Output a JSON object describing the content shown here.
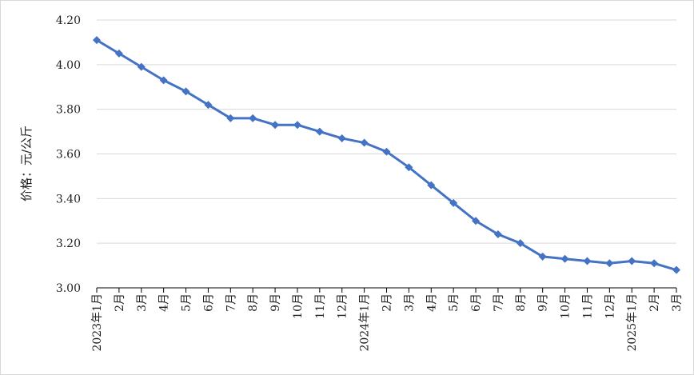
{
  "chart_data": {
    "type": "line",
    "title": "",
    "xlabel": "",
    "ylabel": "价格：元/公斤",
    "ylim": [
      3.0,
      4.2
    ],
    "y_ticks": [
      "3.00",
      "3.20",
      "3.40",
      "3.60",
      "3.80",
      "4.00",
      "4.20"
    ],
    "grid": "horizontal",
    "legend": "none",
    "categories": [
      "2023年1月",
      "2月",
      "3月",
      "4月",
      "5月",
      "6月",
      "7月",
      "8月",
      "9月",
      "10月",
      "11月",
      "12月",
      "2024年1月",
      "2月",
      "3月",
      "4月",
      "5月",
      "6月",
      "7月",
      "8月",
      "9月",
      "10月",
      "11月",
      "12月",
      "2025年1月",
      "2月",
      "3月"
    ],
    "series": [
      {
        "values": [
          4.11,
          4.05,
          3.99,
          3.93,
          3.88,
          3.82,
          3.76,
          3.76,
          3.73,
          3.73,
          3.7,
          3.67,
          3.65,
          3.61,
          3.54,
          3.46,
          3.38,
          3.3,
          3.24,
          3.2,
          3.14,
          3.13,
          3.12,
          3.11,
          3.12,
          3.11,
          3.08
        ]
      }
    ],
    "colors": {
      "line": "#4472C4",
      "grid": "#d9d9d9",
      "axis": "#000000"
    }
  }
}
